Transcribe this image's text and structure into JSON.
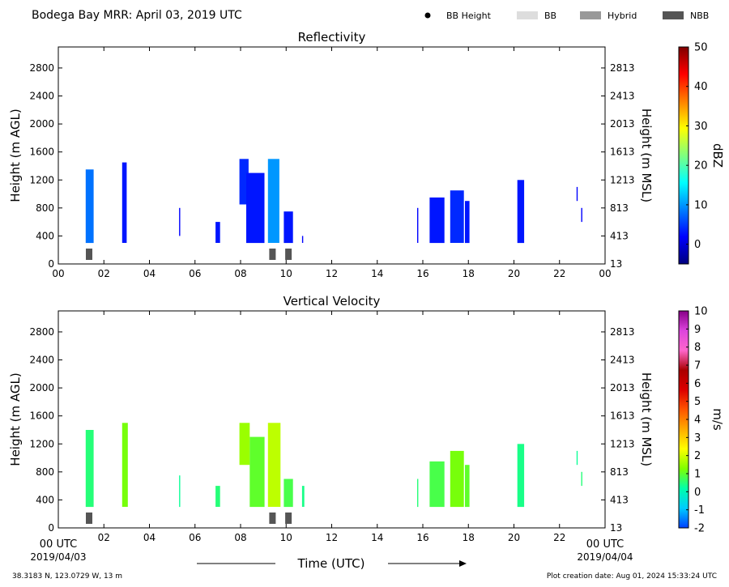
{
  "header": {
    "title": "Bodega Bay MRR:  April 03, 2019 UTC",
    "legend": [
      {
        "label": "BB Height",
        "kind": "dot",
        "color": "#000000"
      },
      {
        "label": "BB",
        "kind": "box",
        "color": "#dddddd"
      },
      {
        "label": "Hybrid",
        "kind": "box",
        "color": "#999999"
      },
      {
        "label": "NBB",
        "kind": "box",
        "color": "#555555"
      }
    ]
  },
  "footer": {
    "location": "38.3183 N, 123.0729 W, 13 m",
    "created": "Plot creation date: Aug 01, 2024 15:33:24 UTC",
    "x_title": "Time (UTC)",
    "start_label": "00 UTC",
    "start_date": "2019/04/03",
    "end_label": "00 UTC",
    "end_date": "2019/04/04"
  },
  "chart_data": [
    {
      "type": "heatmap",
      "title": "Reflectivity",
      "ylabel": "Height (m AGL)",
      "ylabel_right": "Height (m MSL)",
      "xlim": [
        0,
        24
      ],
      "ylim": [
        0,
        3100
      ],
      "x_ticks": [
        "00",
        "02",
        "04",
        "06",
        "08",
        "10",
        "12",
        "14",
        "16",
        "18",
        "20",
        "22",
        "00"
      ],
      "y_ticks": [
        0,
        400,
        800,
        1200,
        1600,
        2000,
        2400,
        2800
      ],
      "y_ticks_right": [
        "13",
        "413",
        "813",
        "1213",
        "1613",
        "2013",
        "2413",
        "2813"
      ],
      "colorbar": {
        "label": "dBZ",
        "range": [
          -5,
          50
        ],
        "ticks": [
          "0",
          "10",
          "20",
          "30",
          "40",
          "50"
        ],
        "tick_values": [
          0,
          10,
          20,
          30,
          40,
          50
        ],
        "colors": [
          "#00007f",
          "#0000ff",
          "#0080ff",
          "#00ffff",
          "#7fff7f",
          "#ffff00",
          "#ff8000",
          "#ff0000",
          "#7f0000"
        ]
      },
      "bb_markers": [
        {
          "time": 1.35,
          "type": "NBB"
        },
        {
          "time": 9.4,
          "type": "NBB"
        },
        {
          "time": 10.1,
          "type": "NBB"
        }
      ],
      "echoes": [
        {
          "t0": 1.2,
          "t1": 1.55,
          "base": 300,
          "top": 1350,
          "value": 8
        },
        {
          "t0": 2.8,
          "t1": 3.0,
          "base": 300,
          "top": 1450,
          "value": 3
        },
        {
          "t0": 5.3,
          "t1": 5.35,
          "base": 400,
          "top": 800,
          "value": 2
        },
        {
          "t0": 6.9,
          "t1": 7.1,
          "base": 300,
          "top": 600,
          "value": 3
        },
        {
          "t0": 7.95,
          "t1": 8.35,
          "base": 850,
          "top": 1500,
          "value": 4
        },
        {
          "t0": 8.25,
          "t1": 9.05,
          "base": 300,
          "top": 1300,
          "value": 3
        },
        {
          "t0": 9.2,
          "t1": 9.7,
          "base": 300,
          "top": 1500,
          "value": 10
        },
        {
          "t0": 9.9,
          "t1": 10.3,
          "base": 300,
          "top": 750,
          "value": 3
        },
        {
          "t0": 10.7,
          "t1": 10.75,
          "base": 300,
          "top": 400,
          "value": 2
        },
        {
          "t0": 15.75,
          "t1": 15.8,
          "base": 300,
          "top": 800,
          "value": 2
        },
        {
          "t0": 16.3,
          "t1": 16.95,
          "base": 300,
          "top": 950,
          "value": 3
        },
        {
          "t0": 17.2,
          "t1": 17.8,
          "base": 300,
          "top": 1050,
          "value": 4
        },
        {
          "t0": 17.85,
          "t1": 18.05,
          "base": 300,
          "top": 900,
          "value": 3
        },
        {
          "t0": 20.15,
          "t1": 20.45,
          "base": 300,
          "top": 1200,
          "value": 3
        },
        {
          "t0": 22.75,
          "t1": 22.8,
          "base": 900,
          "top": 1100,
          "value": 2
        },
        {
          "t0": 22.95,
          "t1": 23.0,
          "base": 600,
          "top": 800,
          "value": 2
        }
      ]
    },
    {
      "type": "heatmap",
      "title": "Vertical Velocity",
      "ylabel": "Height (m AGL)",
      "ylabel_right": "Height (m MSL)",
      "xlim": [
        0,
        24
      ],
      "ylim": [
        0,
        3100
      ],
      "x_ticks": [
        "00 UTC",
        "02",
        "04",
        "06",
        "08",
        "10",
        "12",
        "14",
        "16",
        "18",
        "20",
        "22",
        "00 UTC"
      ],
      "y_ticks": [
        0,
        400,
        800,
        1200,
        1600,
        2000,
        2400,
        2800
      ],
      "y_ticks_right": [
        "13",
        "413",
        "813",
        "1213",
        "1613",
        "2013",
        "2413",
        "2813"
      ],
      "colorbar": {
        "label": "m/s",
        "range": [
          -2,
          10
        ],
        "ticks": [
          "-2",
          "-1",
          "0",
          "1",
          "2",
          "3",
          "4",
          "5",
          "6",
          "7",
          "8",
          "9",
          "10"
        ],
        "tick_values": [
          -2,
          -1,
          0,
          1,
          2,
          3,
          4,
          5,
          6,
          7,
          8,
          9,
          10
        ],
        "colors": [
          "#0040ff",
          "#00ccff",
          "#00ffaa",
          "#7fff00",
          "#ffff00",
          "#ffaa00",
          "#ff5500",
          "#dd0000",
          "#aa0000",
          "#ff66cc",
          "#dd44dd",
          "#880088"
        ]
      },
      "bb_markers": [
        {
          "time": 1.35,
          "type": "NBB"
        },
        {
          "time": 9.4,
          "type": "NBB"
        },
        {
          "time": 10.1,
          "type": "NBB"
        }
      ],
      "echoes": [
        {
          "t0": 1.2,
          "t1": 1.55,
          "base": 300,
          "top": 1400,
          "value": 0.5
        },
        {
          "t0": 2.8,
          "t1": 3.05,
          "base": 300,
          "top": 1500,
          "value": 1.2
        },
        {
          "t0": 5.3,
          "t1": 5.35,
          "base": 300,
          "top": 750,
          "value": 0.3
        },
        {
          "t0": 6.9,
          "t1": 7.1,
          "base": 300,
          "top": 600,
          "value": 0.5
        },
        {
          "t0": 7.95,
          "t1": 8.4,
          "base": 900,
          "top": 1500,
          "value": 1.5
        },
        {
          "t0": 8.4,
          "t1": 9.05,
          "base": 300,
          "top": 1300,
          "value": 1.0
        },
        {
          "t0": 9.2,
          "t1": 9.75,
          "base": 300,
          "top": 1500,
          "value": 1.8
        },
        {
          "t0": 9.9,
          "t1": 10.3,
          "base": 300,
          "top": 700,
          "value": 0.8
        },
        {
          "t0": 10.7,
          "t1": 10.8,
          "base": 300,
          "top": 600,
          "value": 0.4
        },
        {
          "t0": 15.75,
          "t1": 15.8,
          "base": 300,
          "top": 700,
          "value": 0.5
        },
        {
          "t0": 16.3,
          "t1": 16.95,
          "base": 300,
          "top": 950,
          "value": 0.8
        },
        {
          "t0": 17.2,
          "t1": 17.8,
          "base": 300,
          "top": 1100,
          "value": 1.2
        },
        {
          "t0": 17.85,
          "t1": 18.05,
          "base": 300,
          "top": 900,
          "value": 1.0
        },
        {
          "t0": 20.15,
          "t1": 20.45,
          "base": 300,
          "top": 1200,
          "value": 0.4
        },
        {
          "t0": 22.75,
          "t1": 22.8,
          "base": 900,
          "top": 1100,
          "value": 0.3
        },
        {
          "t0": 22.95,
          "t1": 23.0,
          "base": 600,
          "top": 800,
          "value": 0.5
        }
      ]
    }
  ]
}
